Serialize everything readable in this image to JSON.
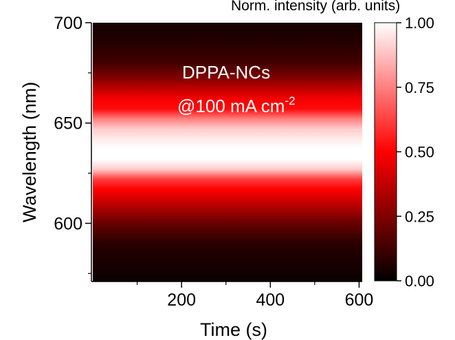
{
  "chart_data": {
    "type": "heatmap",
    "xlabel": "Time (s)",
    "ylabel": "Wavelength (nm)",
    "xlim": [
      0,
      607
    ],
    "ylim": [
      571,
      700
    ],
    "x_ticks": [
      200,
      400,
      600
    ],
    "y_ticks": [
      600,
      650,
      700
    ],
    "annotation_line1": "DPPA-NCs",
    "annotation_line2_base": "@100 mA cm",
    "annotation_line2_exp": "-2",
    "colorbar": {
      "label": "Norm. intensity (arb. units)",
      "range": [
        0.0,
        1.0
      ],
      "ticks": [
        0.0,
        0.25,
        0.5,
        0.75,
        1.0
      ],
      "tick_labels": [
        "0.00",
        "0.25",
        "0.50",
        "0.75",
        "1.00"
      ],
      "colors": [
        "#000000",
        "#ff0000",
        "#ffffff"
      ]
    },
    "spectrum_profile": {
      "description": "normalized emission intensity vs wavelength, constant over time",
      "wavelength_nm": [
        571,
        590,
        600,
        610,
        617,
        622,
        627,
        632,
        637,
        642,
        647,
        652,
        657,
        662,
        667,
        672,
        680,
        690,
        700
      ],
      "intensity": [
        0.02,
        0.08,
        0.2,
        0.38,
        0.5,
        0.62,
        0.9,
        1.0,
        1.0,
        0.96,
        0.9,
        0.75,
        0.52,
        0.48,
        0.38,
        0.26,
        0.13,
        0.07,
        0.04
      ]
    }
  },
  "colors": {
    "low": "#000000",
    "mid": "#ff0000",
    "high": "#ffffff",
    "plot_edge": "#3a0000"
  }
}
